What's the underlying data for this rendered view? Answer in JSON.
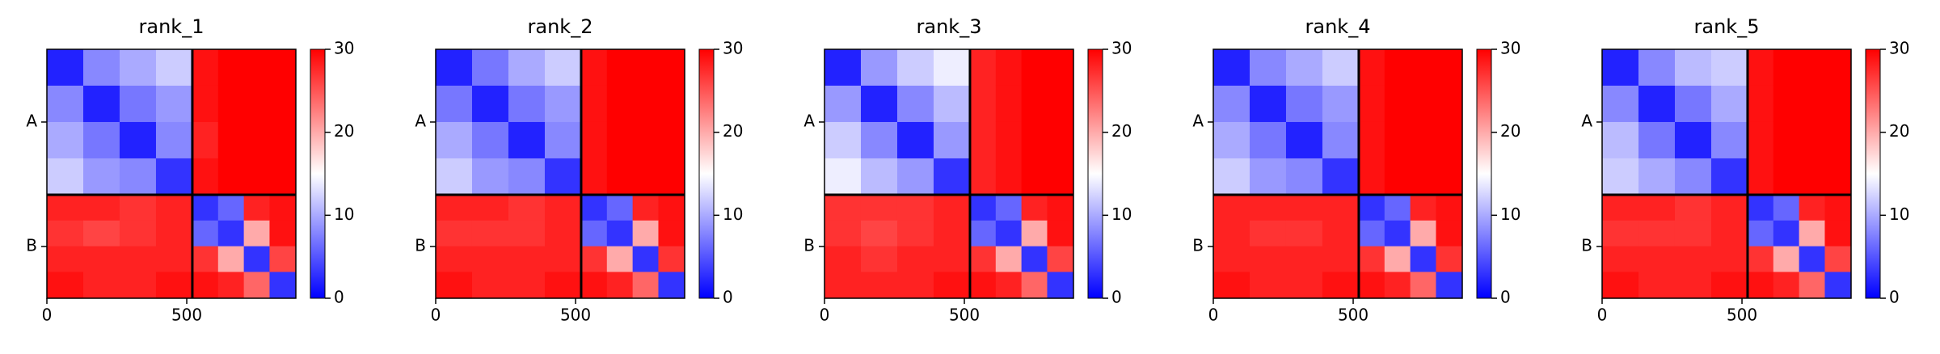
{
  "chart_data": [
    {
      "type": "heatmap",
      "title": "rank_1",
      "edges": [
        0,
        130,
        260,
        390,
        520,
        612,
        704,
        796,
        890
      ],
      "matrix": [
        [
          2,
          8,
          10,
          12,
          29,
          30,
          30,
          30
        ],
        [
          8,
          2,
          7,
          9,
          29,
          30,
          30,
          30
        ],
        [
          10,
          7,
          2,
          8,
          28,
          30,
          30,
          30
        ],
        [
          12,
          9,
          8,
          3,
          29,
          30,
          30,
          30
        ],
        [
          28,
          28,
          27,
          28,
          3,
          6,
          28,
          29
        ],
        [
          27,
          26,
          27,
          28,
          6,
          3,
          20,
          29
        ],
        [
          28,
          28,
          28,
          28,
          27,
          20,
          3,
          26
        ],
        [
          29,
          28,
          28,
          29,
          29,
          28,
          24,
          3
        ]
      ],
      "xlim": [
        0,
        890
      ],
      "ylim": [
        890,
        0
      ],
      "xticks": [
        0,
        500
      ],
      "yticks": [
        {
          "value": 260,
          "label": "A"
        },
        {
          "value": 705,
          "label": "B"
        }
      ],
      "chain_boundaries": [
        520
      ],
      "clim": [
        0,
        30
      ],
      "cticks": [
        0,
        10,
        20,
        30
      ],
      "colors": [
        "#0000ff",
        "#ffffff",
        "#ff0000"
      ]
    },
    {
      "type": "heatmap",
      "title": "rank_2",
      "edges": [
        0,
        130,
        260,
        390,
        520,
        612,
        704,
        796,
        890
      ],
      "matrix": [
        [
          2,
          7,
          10,
          12,
          29,
          30,
          30,
          30
        ],
        [
          7,
          2,
          7,
          9,
          29,
          30,
          30,
          30
        ],
        [
          10,
          7,
          2,
          8,
          29,
          30,
          30,
          30
        ],
        [
          12,
          9,
          8,
          3,
          29,
          30,
          30,
          30
        ],
        [
          28,
          28,
          27,
          28,
          3,
          6,
          28,
          29
        ],
        [
          27,
          27,
          27,
          28,
          6,
          3,
          20,
          29
        ],
        [
          28,
          28,
          28,
          28,
          27,
          20,
          3,
          27
        ],
        [
          29,
          28,
          28,
          29,
          29,
          28,
          24,
          3
        ]
      ],
      "xlim": [
        0,
        890
      ],
      "ylim": [
        890,
        0
      ],
      "xticks": [
        0,
        500
      ],
      "yticks": [
        {
          "value": 260,
          "label": "A"
        },
        {
          "value": 705,
          "label": "B"
        }
      ],
      "chain_boundaries": [
        520
      ],
      "clim": [
        0,
        30
      ],
      "cticks": [
        0,
        10,
        20,
        30
      ],
      "colors": [
        "#0000ff",
        "#ffffff",
        "#ff0000"
      ]
    },
    {
      "type": "heatmap",
      "title": "rank_3",
      "edges": [
        0,
        130,
        260,
        390,
        520,
        612,
        704,
        796,
        890
      ],
      "matrix": [
        [
          2,
          9,
          12,
          14,
          28,
          29,
          30,
          30
        ],
        [
          9,
          2,
          8,
          11,
          28,
          29,
          30,
          30
        ],
        [
          12,
          8,
          2,
          9,
          28,
          29,
          30,
          30
        ],
        [
          14,
          11,
          9,
          3,
          28,
          29,
          30,
          30
        ],
        [
          27,
          27,
          27,
          28,
          3,
          6,
          28,
          29
        ],
        [
          27,
          26,
          27,
          28,
          6,
          3,
          20,
          29
        ],
        [
          28,
          27,
          28,
          28,
          27,
          20,
          3,
          26
        ],
        [
          28,
          28,
          28,
          29,
          29,
          28,
          24,
          3
        ]
      ],
      "xlim": [
        0,
        890
      ],
      "ylim": [
        890,
        0
      ],
      "xticks": [
        0,
        500
      ],
      "yticks": [
        {
          "value": 260,
          "label": "A"
        },
        {
          "value": 705,
          "label": "B"
        }
      ],
      "chain_boundaries": [
        520
      ],
      "clim": [
        0,
        30
      ],
      "cticks": [
        0,
        10,
        20,
        30
      ],
      "colors": [
        "#0000ff",
        "#ffffff",
        "#ff0000"
      ]
    },
    {
      "type": "heatmap",
      "title": "rank_4",
      "edges": [
        0,
        130,
        260,
        390,
        520,
        612,
        704,
        796,
        890
      ],
      "matrix": [
        [
          2,
          8,
          10,
          12,
          29,
          30,
          30,
          30
        ],
        [
          8,
          2,
          7,
          9,
          29,
          30,
          30,
          30
        ],
        [
          10,
          7,
          2,
          8,
          29,
          30,
          30,
          30
        ],
        [
          12,
          9,
          8,
          3,
          29,
          30,
          30,
          30
        ],
        [
          28,
          28,
          28,
          28,
          3,
          6,
          28,
          29
        ],
        [
          28,
          27,
          27,
          28,
          6,
          3,
          20,
          29
        ],
        [
          28,
          28,
          28,
          28,
          27,
          20,
          3,
          27
        ],
        [
          29,
          28,
          28,
          29,
          29,
          28,
          24,
          3
        ]
      ],
      "xlim": [
        0,
        890
      ],
      "ylim": [
        890,
        0
      ],
      "xticks": [
        0,
        500
      ],
      "yticks": [
        {
          "value": 260,
          "label": "A"
        },
        {
          "value": 705,
          "label": "B"
        }
      ],
      "chain_boundaries": [
        520
      ],
      "clim": [
        0,
        30
      ],
      "cticks": [
        0,
        10,
        20,
        30
      ],
      "colors": [
        "#0000ff",
        "#ffffff",
        "#ff0000"
      ]
    },
    {
      "type": "heatmap",
      "title": "rank_5",
      "edges": [
        0,
        130,
        260,
        390,
        520,
        612,
        704,
        796,
        890
      ],
      "matrix": [
        [
          2,
          8,
          11,
          12,
          29,
          30,
          30,
          30
        ],
        [
          8,
          2,
          7,
          10,
          29,
          30,
          30,
          30
        ],
        [
          11,
          7,
          2,
          8,
          29,
          30,
          30,
          30
        ],
        [
          12,
          10,
          8,
          3,
          29,
          30,
          30,
          30
        ],
        [
          28,
          28,
          27,
          28,
          3,
          6,
          28,
          29
        ],
        [
          27,
          27,
          27,
          28,
          6,
          3,
          20,
          29
        ],
        [
          28,
          28,
          28,
          28,
          27,
          20,
          3,
          26
        ],
        [
          29,
          28,
          28,
          29,
          29,
          28,
          24,
          3
        ]
      ],
      "xlim": [
        0,
        890
      ],
      "ylim": [
        890,
        0
      ],
      "xticks": [
        0,
        500
      ],
      "yticks": [
        {
          "value": 260,
          "label": "A"
        },
        {
          "value": 705,
          "label": "B"
        }
      ],
      "chain_boundaries": [
        520
      ],
      "clim": [
        0,
        30
      ],
      "cticks": [
        0,
        10,
        20,
        30
      ],
      "colors": [
        "#0000ff",
        "#ffffff",
        "#ff0000"
      ]
    }
  ]
}
